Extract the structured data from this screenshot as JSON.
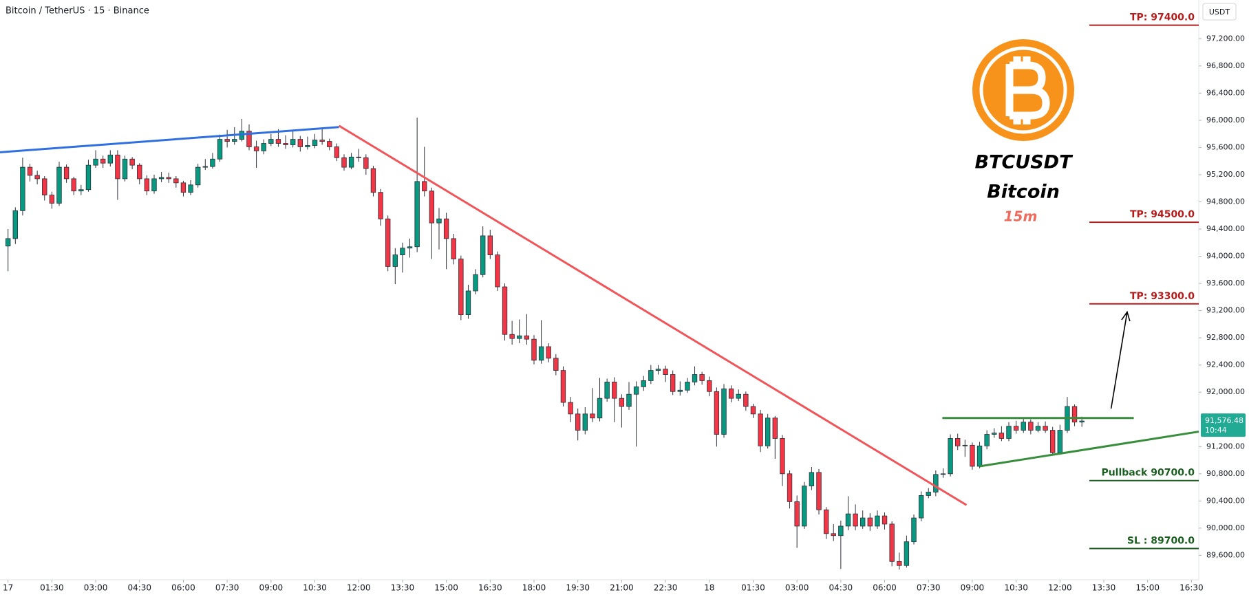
{
  "chart_data": {
    "type": "candlestick",
    "title": "Bitcoin / TetherUS · 15 · Binance",
    "currency": "USDT",
    "logo_title": "BTCUSDT",
    "logo_subtitle": "Bitcoin",
    "logo_timeframe": "15m",
    "price_tag": {
      "label": "91,576.48",
      "countdown": "10:44",
      "color": "#22ab94"
    },
    "up_color": "#089981",
    "down_color": "#f23645",
    "xlim": [
      -1.1,
      163
    ],
    "ylim": [
      89240,
      97770
    ],
    "xticks": [
      {
        "value": 0,
        "label": "17"
      },
      {
        "value": 6,
        "label": "01:30"
      },
      {
        "value": 12,
        "label": "03:00"
      },
      {
        "value": 18,
        "label": "04:30"
      },
      {
        "value": 24,
        "label": "06:00"
      },
      {
        "value": 30,
        "label": "07:30"
      },
      {
        "value": 36,
        "label": "09:00"
      },
      {
        "value": 42,
        "label": "10:30"
      },
      {
        "value": 48,
        "label": "12:00"
      },
      {
        "value": 54,
        "label": "13:30"
      },
      {
        "value": 60,
        "label": "15:00"
      },
      {
        "value": 66,
        "label": "16:30"
      },
      {
        "value": 72,
        "label": "18:00"
      },
      {
        "value": 78,
        "label": "19:30"
      },
      {
        "value": 84,
        "label": "21:00"
      },
      {
        "value": 90,
        "label": "22:30"
      },
      {
        "value": 96,
        "label": "18"
      },
      {
        "value": 102,
        "label": "01:30"
      },
      {
        "value": 108,
        "label": "03:00"
      },
      {
        "value": 114,
        "label": "04:30"
      },
      {
        "value": 120,
        "label": "06:00"
      },
      {
        "value": 126,
        "label": "07:30"
      },
      {
        "value": 132,
        "label": "09:00"
      },
      {
        "value": 138,
        "label": "10:30"
      },
      {
        "value": 144,
        "label": "12:00"
      },
      {
        "value": 150,
        "label": "13:30"
      },
      {
        "value": 156,
        "label": "15:00"
      },
      {
        "value": 162,
        "label": "16:30"
      }
    ],
    "yticks": [
      {
        "value": 89600,
        "label": "89,600.00"
      },
      {
        "value": 90000,
        "label": "90,000.00"
      },
      {
        "value": 90400,
        "label": "90,400.00"
      },
      {
        "value": 90800,
        "label": "90,800.00"
      },
      {
        "value": 91200,
        "label": "91,200.00"
      },
      {
        "value": 92000,
        "label": "92,000.00"
      },
      {
        "value": 92400,
        "label": "92,400.00"
      },
      {
        "value": 92800,
        "label": "92,800.00"
      },
      {
        "value": 93200,
        "label": "93,200.00"
      },
      {
        "value": 93600,
        "label": "93,600.00"
      },
      {
        "value": 94000,
        "label": "94,000.00"
      },
      {
        "value": 94400,
        "label": "94,400.00"
      },
      {
        "value": 94800,
        "label": "94,800.00"
      },
      {
        "value": 95200,
        "label": "95,200.00"
      },
      {
        "value": 95600,
        "label": "95,600.00"
      },
      {
        "value": 96000,
        "label": "96,000.00"
      },
      {
        "value": 96400,
        "label": "96,400.00"
      },
      {
        "value": 96800,
        "label": "96,800.00"
      },
      {
        "value": 97200,
        "label": "97,200.00"
      }
    ],
    "open": [
      94150,
      94260,
      94670,
      95310,
      95190,
      95140,
      94900,
      94780,
      95310,
      95140,
      94960,
      94980,
      95340,
      95430,
      95370,
      95490,
      95140,
      95430,
      95340,
      95140,
      94960,
      95140,
      95160,
      95140,
      95080,
      94940,
      95050,
      95310,
      95320,
      95430,
      95720,
      95690,
      95720,
      95840,
      95610,
      95550,
      95660,
      95720,
      95660,
      95640,
      95720,
      95610,
      95630,
      95710,
      95690,
      95610,
      95450,
      95310,
      95460,
      95450,
      95290,
      94940,
      94550,
      93850,
      94020,
      94120,
      94140,
      95100,
      94960,
      94490,
      94550,
      94260,
      93960,
      93140,
      93490,
      93730,
      94300,
      94020,
      93550,
      92850,
      92790,
      92830,
      92780,
      92470,
      92670,
      92500,
      92320,
      91850,
      91680,
      91440,
      91680,
      91620,
      91910,
      92150,
      91910,
      91790,
      91970,
      92080,
      92170,
      92320,
      92340,
      92260,
      92010,
      92030,
      92150,
      92260,
      92170,
      92010,
      91380,
      92050,
      91910,
      91970,
      91790,
      91680,
      91210,
      91620,
      91320,
      90800,
      90390,
      90030,
      90620,
      90820,
      90270,
      89920,
      89890,
      90030,
      90210,
      90030,
      90150,
      90030,
      90180,
      90060,
      89510,
      89450,
      89800,
      90150,
      90480,
      90530,
      90790,
      90800,
      91320,
      91210,
      91220,
      90910,
      91210,
      91380,
      91400,
      91320,
      91500,
      91440,
      91560,
      91440,
      91500,
      91440,
      91110,
      91440,
      91790,
      91560
    ],
    "high": [
      94400,
      94720,
      95450,
      95360,
      95260,
      95180,
      94950,
      95390,
      95350,
      95170,
      95050,
      95420,
      95560,
      95480,
      95560,
      95560,
      95480,
      95460,
      95370,
      95190,
      95200,
      95240,
      95230,
      95180,
      95110,
      95120,
      95360,
      95430,
      95520,
      95790,
      95860,
      95900,
      96020,
      95940,
      95700,
      95720,
      95800,
      95870,
      95780,
      95850,
      95770,
      95760,
      95800,
      95870,
      95730,
      95660,
      95500,
      95520,
      95580,
      95500,
      95330,
      94990,
      94600,
      94120,
      94200,
      94260,
      96040,
      95610,
      95010,
      94710,
      94640,
      94330,
      94010,
      93580,
      93810,
      94440,
      94390,
      94070,
      93600,
      93050,
      93070,
      93150,
      92840,
      93060,
      92720,
      92560,
      92380,
      91930,
      91760,
      91780,
      92060,
      92210,
      92200,
      92220,
      91970,
      92150,
      92160,
      92240,
      92400,
      92400,
      92390,
      92320,
      92160,
      92210,
      92380,
      92300,
      92230,
      92070,
      92120,
      92100,
      92040,
      92010,
      91830,
      91740,
      91680,
      91650,
      91370,
      90850,
      90480,
      90680,
      90900,
      90870,
      90310,
      90060,
      90110,
      90470,
      90350,
      90260,
      90220,
      90260,
      90230,
      90100,
      89640,
      89890,
      90200,
      90540,
      90590,
      90850,
      90880,
      91380,
      91390,
      91300,
      91260,
      91270,
      91440,
      91470,
      91500,
      91560,
      91580,
      91620,
      91600,
      91560,
      91570,
      91490,
      91520,
      91930,
      91820,
      91640
    ],
    "low": [
      93780,
      94180,
      94600,
      95100,
      95060,
      94820,
      94700,
      94740,
      95080,
      94900,
      94900,
      94950,
      95300,
      95300,
      95320,
      94830,
      95100,
      95280,
      95060,
      94900,
      94920,
      95090,
      95080,
      95010,
      94880,
      94900,
      95010,
      95270,
      95290,
      95390,
      95600,
      95640,
      95690,
      95560,
      95300,
      95500,
      95620,
      95610,
      95580,
      95600,
      95540,
      95570,
      95590,
      95640,
      95560,
      95400,
      95260,
      95280,
      95390,
      95200,
      94880,
      94450,
      93780,
      93590,
      93760,
      93980,
      94060,
      94880,
      93960,
      94100,
      93810,
      93880,
      93060,
      93080,
      93440,
      93690,
      93960,
      93490,
      92760,
      92700,
      92720,
      92700,
      92410,
      92420,
      92440,
      92250,
      91790,
      91560,
      91290,
      91380,
      91560,
      91570,
      91860,
      91560,
      91480,
      91740,
      91200,
      92020,
      92120,
      92260,
      92150,
      91960,
      91950,
      91990,
      92100,
      92110,
      91940,
      91200,
      91330,
      91850,
      91870,
      91730,
      91620,
      91120,
      91170,
      91020,
      90620,
      90290,
      89710,
      89990,
      90560,
      90200,
      89840,
      89810,
      89400,
      89970,
      89970,
      89990,
      89960,
      89990,
      89980,
      89440,
      89390,
      89420,
      89760,
      90100,
      90440,
      90470,
      90740,
      90760,
      91150,
      91050,
      90860,
      90880,
      91160,
      91330,
      91280,
      91280,
      91390,
      91400,
      91380,
      91410,
      91400,
      91080,
      91080,
      91400,
      91500,
      91490
    ],
    "close": [
      94260,
      94670,
      95310,
      95190,
      95140,
      94900,
      94780,
      95310,
      95140,
      94960,
      94980,
      95340,
      95430,
      95370,
      95490,
      95140,
      95430,
      95340,
      95140,
      94960,
      95140,
      95160,
      95140,
      95080,
      94940,
      95050,
      95310,
      95320,
      95430,
      95720,
      95690,
      95720,
      95840,
      95610,
      95550,
      95660,
      95720,
      95660,
      95640,
      95720,
      95610,
      95630,
      95710,
      95690,
      95610,
      95450,
      95310,
      95460,
      95450,
      95290,
      94940,
      94550,
      93850,
      94020,
      94120,
      94140,
      95100,
      94960,
      94490,
      94550,
      94260,
      93960,
      93140,
      93490,
      93730,
      94300,
      94020,
      93550,
      92850,
      92790,
      92830,
      92780,
      92470,
      92670,
      92500,
      92320,
      91850,
      91680,
      91440,
      91680,
      91620,
      91910,
      92150,
      91910,
      91790,
      91970,
      92080,
      92170,
      92320,
      92340,
      92260,
      92010,
      92030,
      92150,
      92260,
      92170,
      92010,
      91380,
      92050,
      91910,
      91970,
      91790,
      91680,
      91210,
      91620,
      91320,
      90800,
      90390,
      90030,
      90620,
      90820,
      90270,
      89920,
      89890,
      90030,
      90210,
      90030,
      90150,
      90030,
      90180,
      90060,
      89510,
      89450,
      89800,
      90150,
      90480,
      90530,
      90790,
      90800,
      91320,
      91210,
      91220,
      90910,
      91210,
      91380,
      91400,
      91320,
      91500,
      91440,
      91560,
      91440,
      91500,
      91440,
      91110,
      91440,
      91790,
      91560,
      91576.48
    ],
    "trendlines": [
      {
        "color": "#2f6fe0",
        "x": [
          -1.1,
          45.3
        ],
        "y": [
          95530,
          95900
        ]
      },
      {
        "color": "#f0555a",
        "x": [
          45.3,
          131.2
        ],
        "y": [
          95920,
          90340
        ]
      },
      {
        "color": "#388e3c",
        "x": [
          133,
          163
        ],
        "y": [
          90910,
          91420
        ]
      },
      {
        "color": "#388e3c",
        "x": [
          127.9,
          154.1
        ],
        "y": [
          91620,
          91620
        ]
      }
    ],
    "arrow": {
      "color": "#000000",
      "x": [
        151,
        153.2
      ],
      "y": [
        91760,
        93180
      ]
    },
    "levels": [
      {
        "label": "TP: 97400.0",
        "value": 97400,
        "color": "#b71c1c"
      },
      {
        "label": "TP: 94500.0",
        "value": 94500,
        "color": "#b71c1c"
      },
      {
        "label": "TP: 93300.0",
        "value": 93300,
        "color": "#b71c1c"
      },
      {
        "label": "Pullback 90700.0",
        "value": 90700,
        "color": "#1b5e20"
      },
      {
        "label": "SL : 89700.0",
        "value": 89700,
        "color": "#1b5e20"
      }
    ]
  }
}
